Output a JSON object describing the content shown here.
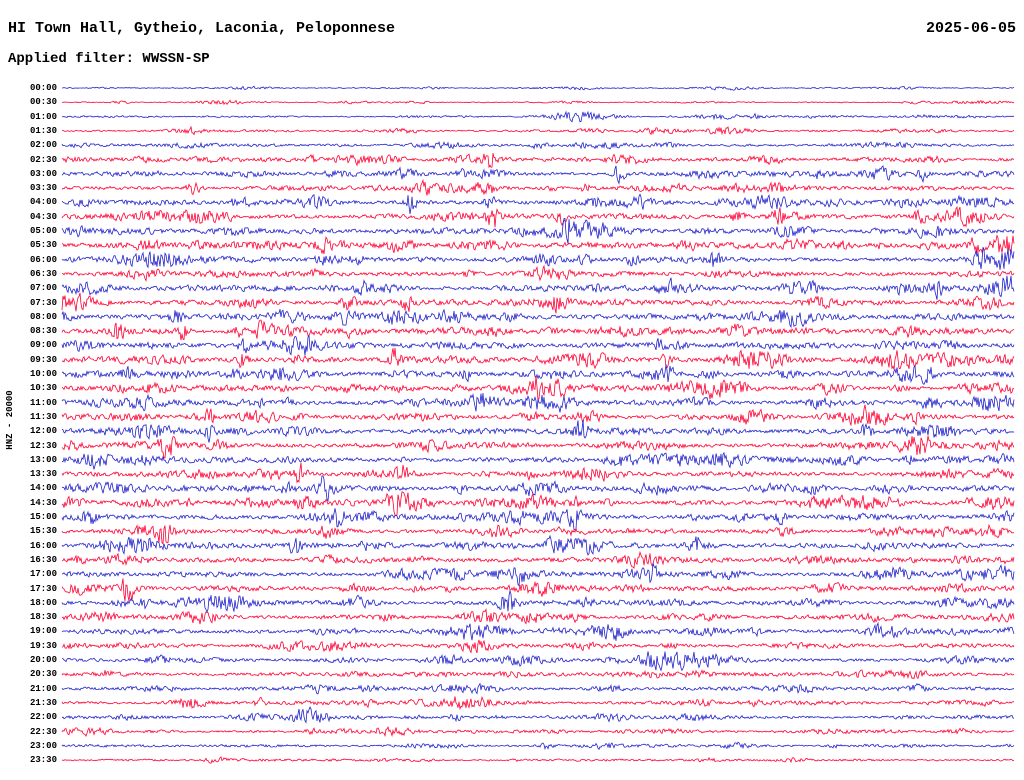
{
  "header": {
    "title": "HI Town Hall, Gytheio, Laconia, Peloponnese",
    "date": "2025-06-05",
    "filter": "Applied filter: WWSSN-SP"
  },
  "y_axis": {
    "label": "HNZ - 20000"
  },
  "colors": {
    "background": "#ffffff",
    "text": "#000000",
    "trace_blue": "#2222cc",
    "trace_red": "#ff0033"
  },
  "chart_data": {
    "type": "line",
    "variant": "helicorder-seismogram",
    "station": "HI Town Hall, Gytheio, Laconia, Peloponnese",
    "channel_scale": "HNZ - 20000",
    "date": "2025-06-05",
    "filter": "WWSSN-SP",
    "row_interval_minutes": 30,
    "minutes_per_row": 30,
    "x_tick_labels": [],
    "grid": false,
    "legend": false,
    "rows": [
      {
        "time": "00:00",
        "color": "blue",
        "amp": 0.6,
        "events": [
          {
            "pos": 0.39,
            "gain": 2,
            "w": 8
          }
        ]
      },
      {
        "time": "00:30",
        "color": "red",
        "amp": 0.6,
        "events": []
      },
      {
        "time": "01:00",
        "color": "blue",
        "amp": 0.8,
        "events": [
          {
            "pos": 0.73,
            "gain": 2,
            "w": 3
          }
        ]
      },
      {
        "time": "01:30",
        "color": "red",
        "amp": 1.0,
        "events": [
          {
            "pos": 0.135,
            "gain": 2.5,
            "w": 4
          }
        ]
      },
      {
        "time": "02:00",
        "color": "blue",
        "amp": 1.2,
        "events": [
          {
            "pos": 0.5,
            "gain": 1.8,
            "w": 5
          }
        ]
      },
      {
        "time": "02:30",
        "color": "red",
        "amp": 1.8,
        "events": [
          {
            "pos": 0.45,
            "gain": 7,
            "w": 4
          },
          {
            "pos": 0.35,
            "gain": 2,
            "w": 6
          }
        ]
      },
      {
        "time": "03:00",
        "color": "blue",
        "amp": 2.0,
        "events": [
          {
            "pos": 0.585,
            "gain": 6,
            "w": 5
          },
          {
            "pos": 0.905,
            "gain": 3.2,
            "w": 4
          },
          {
            "pos": 0.42,
            "gain": 2,
            "w": 8
          }
        ]
      },
      {
        "time": "03:30",
        "color": "red",
        "amp": 2.2,
        "events": [
          {
            "pos": 0.138,
            "gain": 4.5,
            "w": 4
          },
          {
            "pos": 0.55,
            "gain": 3,
            "w": 4
          }
        ]
      },
      {
        "time": "04:00",
        "color": "blue",
        "amp": 2.6,
        "events": [
          {
            "pos": 0.366,
            "gain": 5,
            "w": 4
          },
          {
            "pos": 0.45,
            "gain": 2.5,
            "w": 5
          }
        ]
      },
      {
        "time": "04:30",
        "color": "red",
        "amp": 2.6,
        "events": [
          {
            "pos": 0.452,
            "gain": 4,
            "w": 4
          },
          {
            "pos": 0.523,
            "gain": 4.5,
            "w": 4
          },
          {
            "pos": 0.71,
            "gain": 3.5,
            "w": 5
          },
          {
            "pos": 0.75,
            "gain": 3.5,
            "w": 4
          }
        ]
      },
      {
        "time": "05:00",
        "color": "blue",
        "amp": 2.8,
        "events": [
          {
            "pos": 0.53,
            "gain": 5.5,
            "w": 4
          }
        ]
      },
      {
        "time": "05:30",
        "color": "red",
        "amp": 2.8,
        "events": [
          {
            "pos": 0.96,
            "gain": 5,
            "w": 4
          }
        ]
      },
      {
        "time": "06:00",
        "color": "blue",
        "amp": 2.6,
        "events": [
          {
            "pos": 0.6,
            "gain": 3.5,
            "w": 4
          },
          {
            "pos": 0.685,
            "gain": 3,
            "w": 4
          },
          {
            "pos": 0.965,
            "gain": 4.5,
            "w": 4
          }
        ]
      },
      {
        "time": "06:30",
        "color": "red",
        "amp": 2.4,
        "events": []
      },
      {
        "time": "07:00",
        "color": "blue",
        "amp": 2.6,
        "events": [
          {
            "pos": 0.92,
            "gain": 3.5,
            "w": 5
          }
        ]
      },
      {
        "time": "07:30",
        "color": "red",
        "amp": 2.6,
        "events": [
          {
            "pos": 0.3,
            "gain": 4,
            "w": 5
          },
          {
            "pos": 0.363,
            "gain": 3.5,
            "w": 4
          },
          {
            "pos": 0.52,
            "gain": 2.5,
            "w": 5
          }
        ]
      },
      {
        "time": "08:00",
        "color": "blue",
        "amp": 2.8,
        "events": [
          {
            "pos": 0.12,
            "gain": 2.5,
            "w": 5
          }
        ]
      },
      {
        "time": "08:30",
        "color": "red",
        "amp": 3.0,
        "events": [
          {
            "pos": 0.058,
            "gain": 3,
            "w": 5
          },
          {
            "pos": 0.125,
            "gain": 3.5,
            "w": 5
          },
          {
            "pos": 0.185,
            "gain": 3.5,
            "w": 4
          },
          {
            "pos": 0.21,
            "gain": 3,
            "w": 4
          }
        ]
      },
      {
        "time": "09:00",
        "color": "blue",
        "amp": 3.0,
        "events": [
          {
            "pos": 0.19,
            "gain": 2.5,
            "w": 5
          }
        ]
      },
      {
        "time": "09:30",
        "color": "red",
        "amp": 3.0,
        "events": [
          {
            "pos": 0.19,
            "gain": 4,
            "w": 4
          },
          {
            "pos": 0.25,
            "gain": 3,
            "w": 4
          },
          {
            "pos": 0.35,
            "gain": 3.5,
            "w": 4
          },
          {
            "pos": 0.635,
            "gain": 4,
            "w": 4
          }
        ]
      },
      {
        "time": "10:00",
        "color": "blue",
        "amp": 2.8,
        "events": [
          {
            "pos": 0.635,
            "gain": 3.5,
            "w": 4
          }
        ]
      },
      {
        "time": "10:30",
        "color": "red",
        "amp": 2.8,
        "events": [
          {
            "pos": 0.5,
            "gain": 3.5,
            "w": 4
          }
        ]
      },
      {
        "time": "11:00",
        "color": "blue",
        "amp": 2.6,
        "events": []
      },
      {
        "time": "11:30",
        "color": "red",
        "amp": 2.6,
        "events": [
          {
            "pos": 0.155,
            "gain": 2.5,
            "w": 4
          }
        ]
      },
      {
        "time": "12:00",
        "color": "blue",
        "amp": 2.6,
        "events": [
          {
            "pos": 0.155,
            "gain": 3.5,
            "w": 4
          },
          {
            "pos": 0.545,
            "gain": 4,
            "w": 5
          },
          {
            "pos": 0.845,
            "gain": 4,
            "w": 5
          }
        ]
      },
      {
        "time": "12:30",
        "color": "red",
        "amp": 2.6,
        "events": [
          {
            "pos": 0.11,
            "gain": 4.5,
            "w": 5
          }
        ]
      },
      {
        "time": "13:00",
        "color": "blue",
        "amp": 2.4,
        "events": [
          {
            "pos": 0.89,
            "gain": 4,
            "w": 4
          }
        ]
      },
      {
        "time": "13:30",
        "color": "red",
        "amp": 2.4,
        "events": [
          {
            "pos": 0.25,
            "gain": 4,
            "w": 4
          },
          {
            "pos": 0.357,
            "gain": 3,
            "w": 4
          }
        ]
      },
      {
        "time": "14:00",
        "color": "blue",
        "amp": 2.6,
        "events": [
          {
            "pos": 0.275,
            "gain": 4.5,
            "w": 5
          }
        ]
      },
      {
        "time": "14:30",
        "color": "red",
        "amp": 2.6,
        "events": [
          {
            "pos": 0.54,
            "gain": 2.5,
            "w": 5
          }
        ]
      },
      {
        "time": "15:00",
        "color": "blue",
        "amp": 2.6,
        "events": [
          {
            "pos": 0.29,
            "gain": 4,
            "w": 4
          },
          {
            "pos": 0.54,
            "gain": 4,
            "w": 4
          },
          {
            "pos": 0.755,
            "gain": 3.5,
            "w": 4
          }
        ]
      },
      {
        "time": "15:30",
        "color": "red",
        "amp": 2.4,
        "events": [
          {
            "pos": 0.107,
            "gain": 3.5,
            "w": 4
          }
        ]
      },
      {
        "time": "16:00",
        "color": "blue",
        "amp": 2.4,
        "events": [
          {
            "pos": 0.245,
            "gain": 4,
            "w": 4
          },
          {
            "pos": 0.668,
            "gain": 3.5,
            "w": 4
          }
        ]
      },
      {
        "time": "16:30",
        "color": "red",
        "amp": 2.4,
        "events": []
      },
      {
        "time": "17:00",
        "color": "blue",
        "amp": 2.4,
        "events": [
          {
            "pos": 0.62,
            "gain": 3.5,
            "w": 4
          }
        ]
      },
      {
        "time": "17:30",
        "color": "red",
        "amp": 2.4,
        "events": [
          {
            "pos": 0.07,
            "gain": 4,
            "w": 4
          }
        ]
      },
      {
        "time": "18:00",
        "color": "blue",
        "amp": 2.4,
        "events": [
          {
            "pos": 0.468,
            "gain": 4.5,
            "w": 6
          }
        ]
      },
      {
        "time": "18:30",
        "color": "red",
        "amp": 2.2,
        "events": []
      },
      {
        "time": "19:00",
        "color": "blue",
        "amp": 2.2,
        "events": []
      },
      {
        "time": "19:30",
        "color": "red",
        "amp": 2.0,
        "events": []
      },
      {
        "time": "20:00",
        "color": "blue",
        "amp": 2.0,
        "events": []
      },
      {
        "time": "20:30",
        "color": "red",
        "amp": 1.9,
        "events": []
      },
      {
        "time": "21:00",
        "color": "blue",
        "amp": 1.8,
        "events": []
      },
      {
        "time": "21:30",
        "color": "red",
        "amp": 1.8,
        "events": [
          {
            "pos": 0.207,
            "gain": 3.5,
            "w": 4
          }
        ]
      },
      {
        "time": "22:00",
        "color": "blue",
        "amp": 1.5,
        "events": [
          {
            "pos": 0.413,
            "gain": 3,
            "w": 4
          }
        ]
      },
      {
        "time": "22:30",
        "color": "red",
        "amp": 1.4,
        "events": []
      },
      {
        "time": "23:00",
        "color": "blue",
        "amp": 1.2,
        "events": [
          {
            "pos": 0.51,
            "gain": 2.5,
            "w": 4
          }
        ]
      },
      {
        "time": "23:30",
        "color": "red",
        "amp": 1.0,
        "events": []
      }
    ]
  }
}
